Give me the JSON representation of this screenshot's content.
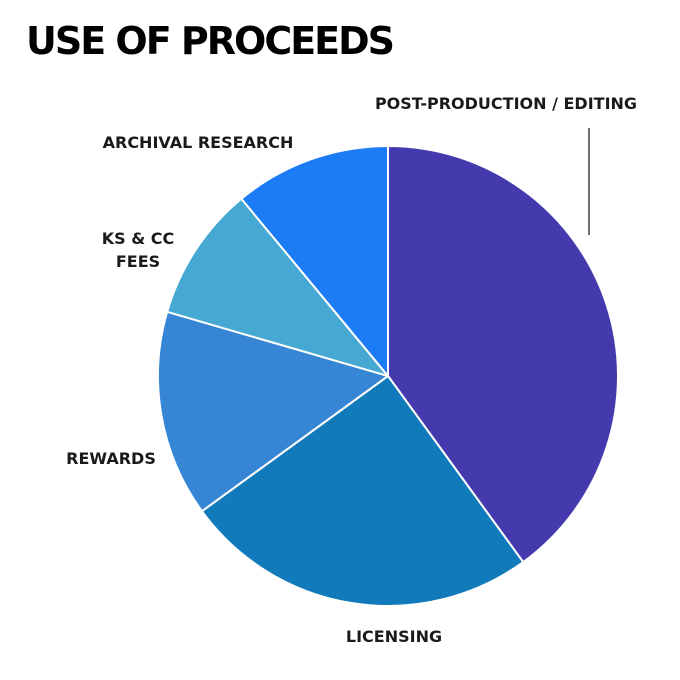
{
  "chart_data": {
    "type": "pie",
    "title": "USE OF PROCEEDS",
    "start_angle_deg": 0,
    "direction": "clockwise",
    "slices": [
      {
        "label": "POST-PRODUCTION / EDITING",
        "value": 40,
        "color": "#453aad"
      },
      {
        "label": "LICENSING",
        "value": 25,
        "color": "#107aba"
      },
      {
        "label": "REWARDS",
        "value": 14.5,
        "color": "#3786d5"
      },
      {
        "label": "KS & CC FEES",
        "value": 9.5,
        "color": "#46a9d3"
      },
      {
        "label": "ARCHIVAL RESEARCH",
        "value": 11,
        "color": "#1c7cf5"
      }
    ]
  }
}
